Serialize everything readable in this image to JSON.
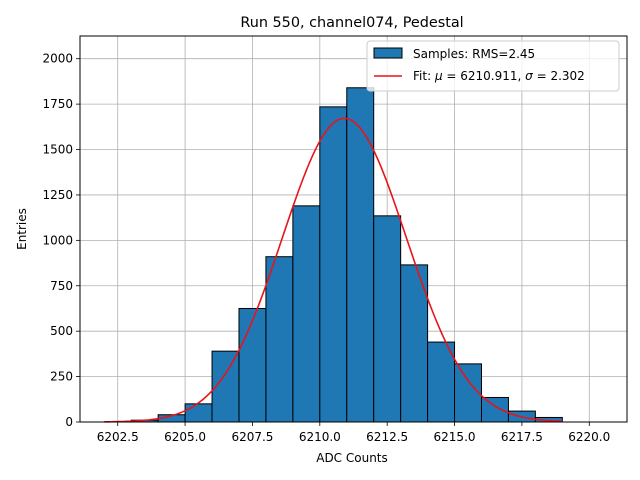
{
  "chart_data": {
    "type": "bar",
    "title": "Run 550, channel074, Pedestal",
    "xlabel": "ADC Counts",
    "ylabel": "Entries",
    "xlim": [
      6201.1,
      6221.4
    ],
    "ylim": [
      0,
      2125
    ],
    "grid": true,
    "legend_position": "top-right",
    "x_ticks": [
      6202.5,
      6205.0,
      6207.5,
      6210.0,
      6212.5,
      6215.0,
      6217.5,
      6220.0
    ],
    "x_tick_labels": [
      "6202.5",
      "6205.0",
      "6207.5",
      "6210.0",
      "6212.5",
      "6215.0",
      "6217.5",
      "6220.0"
    ],
    "y_ticks": [
      0,
      250,
      500,
      750,
      1000,
      1250,
      1500,
      1750,
      2000
    ],
    "y_tick_labels": [
      "0",
      "250",
      "500",
      "750",
      "1000",
      "1250",
      "1500",
      "1750",
      "2000"
    ],
    "bins": [
      {
        "start": 6203,
        "end": 6204,
        "value": 10
      },
      {
        "start": 6204,
        "end": 6205,
        "value": 40
      },
      {
        "start": 6205,
        "end": 6206,
        "value": 100
      },
      {
        "start": 6206,
        "end": 6207,
        "value": 390
      },
      {
        "start": 6207,
        "end": 6208,
        "value": 625
      },
      {
        "start": 6208,
        "end": 6209,
        "value": 910
      },
      {
        "start": 6209,
        "end": 6210,
        "value": 1190
      },
      {
        "start": 6210,
        "end": 6211,
        "value": 1735
      },
      {
        "start": 6211,
        "end": 6212,
        "value": 1840
      },
      {
        "start": 6212,
        "end": 6213,
        "value": 1135
      },
      {
        "start": 6213,
        "end": 6214,
        "value": 865
      },
      {
        "start": 6214,
        "end": 6215,
        "value": 440
      },
      {
        "start": 6215,
        "end": 6216,
        "value": 320
      },
      {
        "start": 6216,
        "end": 6217,
        "value": 135
      },
      {
        "start": 6217,
        "end": 6218,
        "value": 60
      },
      {
        "start": 6218,
        "end": 6219,
        "value": 25
      }
    ],
    "fit": {
      "mu": 6210.911,
      "sigma": 2.302,
      "x_range": [
        6202,
        6219
      ],
      "peak": 1672
    },
    "series": [
      {
        "name": "Samples: RMS=2.45",
        "color": "#1f77b4",
        "kind": "histogram"
      },
      {
        "name": "Fit: μ = 6210.911, σ = 2.302",
        "color": "#e8141a",
        "kind": "line"
      }
    ],
    "legend": {
      "samples_label": "Samples: RMS=2.45",
      "fit_prefix": "Fit: ",
      "fit_mu_symbol": "μ",
      "fit_mu_value": " = 6210.911, ",
      "fit_sigma_symbol": "σ",
      "fit_sigma_value": " = 2.302"
    }
  }
}
